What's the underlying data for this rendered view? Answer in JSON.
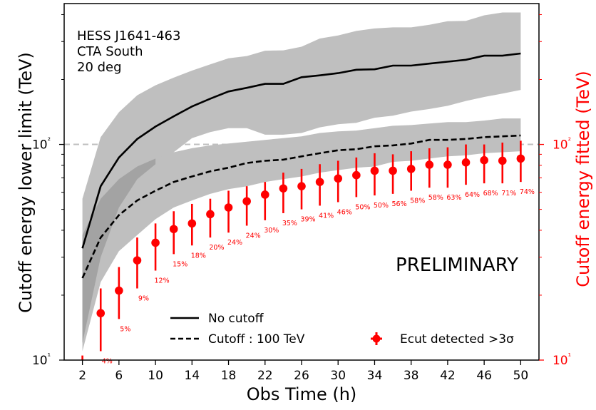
{
  "chart_data": {
    "type": "line",
    "x_ticks": [
      2,
      6,
      10,
      14,
      18,
      22,
      26,
      30,
      34,
      38,
      42,
      46,
      50
    ],
    "xlim": [
      0,
      52
    ],
    "xlabel": "Obs Time (h)",
    "ylabel_left": "Cutoff energy lower limit (TeV)",
    "ylabel_right": "Cutoff energy fitted (TeV)",
    "yscale": "log",
    "ylim": [
      10,
      450
    ],
    "ytick_labels": [
      "10¹",
      "10²"
    ],
    "reference_line": {
      "y": 100,
      "style": "dashed",
      "color": "#bfbfbf"
    },
    "annotation": {
      "lines": [
        "HESS J1641-463",
        "CTA South",
        "20 deg"
      ]
    },
    "watermark": "PRELIMINARY",
    "legend": {
      "no_cutoff": "No cutoff",
      "cutoff": "Cutoff : 100 TeV",
      "ecut": "Ecut detected >3σ"
    },
    "x": [
      2,
      4,
      6,
      8,
      10,
      12,
      14,
      16,
      18,
      20,
      22,
      24,
      26,
      28,
      30,
      32,
      34,
      36,
      38,
      40,
      42,
      44,
      46,
      48,
      50
    ],
    "series": [
      {
        "name": "No cutoff",
        "style": "solid",
        "color": "#000000",
        "values": [
          33,
          64,
          87,
          106,
          121,
          135,
          150,
          163,
          176,
          183,
          191,
          191,
          205,
          209,
          214,
          222,
          223,
          232,
          232,
          237,
          242,
          247,
          258,
          258,
          264
        ],
        "band_upper": [
          56,
          108,
          141,
          169,
          188,
          204,
          220,
          235,
          251,
          257,
          272,
          273,
          284,
          310,
          320,
          336,
          345,
          349,
          349,
          359,
          373,
          374,
          397,
          409,
          409
        ],
        "band_lower": [
          12,
          30,
          51,
          69,
          81,
          92,
          107,
          114,
          119,
          119,
          111,
          111,
          113,
          120,
          124,
          126,
          133,
          136,
          142,
          146,
          151,
          159,
          166,
          172,
          179
        ]
      },
      {
        "name": "Cutoff : 100 TeV",
        "style": "dashed",
        "color": "#000000",
        "values": [
          24,
          37,
          47,
          55,
          61,
          67,
          71,
          75,
          78,
          82,
          84,
          85,
          88,
          91,
          94,
          95,
          98,
          99,
          101,
          105,
          105,
          106,
          108,
          109,
          110
        ],
        "band_upper": [
          38,
          56,
          69,
          79,
          86,
          92,
          96,
          99,
          101,
          103,
          105,
          107,
          109,
          113,
          115,
          116,
          119,
          122,
          123,
          125,
          127,
          127,
          129,
          132,
          132
        ],
        "band_lower": [
          11,
          23,
          32,
          38,
          45,
          51,
          55,
          59,
          62,
          64,
          67,
          69,
          71,
          74,
          76,
          78,
          79,
          83,
          84,
          86,
          88,
          89,
          91,
          92,
          93
        ]
      },
      {
        "name": "Ecut detected >3σ",
        "style": "markers-errorbars",
        "color": "#ff0000",
        "x": [
          2,
          4,
          6,
          8,
          10,
          12,
          14,
          16,
          18,
          20,
          22,
          24,
          26,
          28,
          30,
          32,
          34,
          36,
          38,
          40,
          42,
          44,
          46,
          48,
          50
        ],
        "values": [
          9.8,
          16.5,
          21,
          29,
          35,
          40.5,
          43,
          47.5,
          51,
          54.5,
          58.5,
          62.5,
          64,
          67,
          69.5,
          72,
          75.5,
          75.5,
          77,
          80.5,
          80.5,
          82.5,
          84.5,
          84,
          86
        ],
        "err_upper": [
          10.5,
          21.5,
          27,
          37,
          43,
          49,
          53,
          56,
          61,
          64,
          67,
          74,
          77,
          81,
          84,
          87,
          91,
          90,
          93,
          96,
          97,
          100,
          100,
          102,
          104
        ],
        "err_lower": [
          9,
          11,
          15.5,
          21.5,
          26,
          31,
          34,
          37,
          39,
          42,
          44.5,
          48,
          50,
          52,
          54,
          57,
          58,
          59,
          61,
          63,
          63,
          65,
          66,
          66,
          67
        ],
        "point_labels": [
          "",
          "4%",
          "5%",
          "9%",
          "12%",
          "15%",
          "18%",
          "20%",
          "24%",
          "24%",
          "30%",
          "35%",
          "39%",
          "41%",
          "46%",
          "50%",
          "50%",
          "56%",
          "58%",
          "58%",
          "63%",
          "64%",
          "68%",
          "71%",
          "74%"
        ]
      }
    ],
    "colors": {
      "band": "#bfbfbf",
      "band_overlap": "#a3a3a3",
      "right_axis": "#ff0000",
      "reference_line": "#bfbfbf"
    }
  }
}
